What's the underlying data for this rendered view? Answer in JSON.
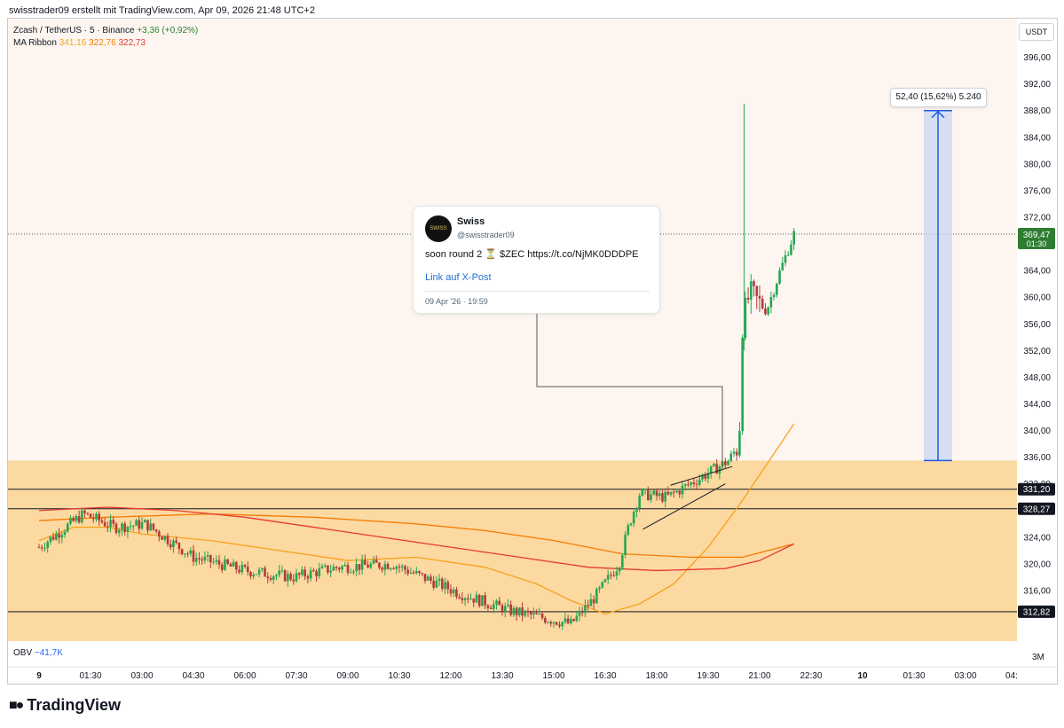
{
  "header": {
    "text": "swisstrader09 erstellt mit TradingView.com, Apr 09, 2026 21:48 UTC+2"
  },
  "legend": {
    "symbol": "Zcash / TetherUS · 5 · Binance",
    "change": "+3,36 (+0,92%)",
    "indicator_name": "MA Ribbon",
    "indicator_values": [
      "341,16",
      "322,76",
      "322,73"
    ],
    "obv_label": "OBV",
    "obv_value": "−41,7K"
  },
  "currency": "USDT",
  "tweet": {
    "name": "Swiss",
    "handle": "@swisstrader09",
    "text": "soon round 2 ⏳ $ZEC https://t.co/NjMK0DDDPE",
    "link": "Link auf X-Post",
    "date": "09 Apr '26 · 19:59",
    "avatar_text": "SWISS"
  },
  "measure_label": "52,40 (15,62%) 5.240",
  "obv_scale_label": "3M",
  "brand": "TradingView",
  "colors": {
    "zone": "#fbd9a1",
    "bg": "#fdf6f0",
    "up": "#26a653",
    "down": "#b33b3b",
    "ma_fast": "#f7a21b",
    "ma_mid": "#f57c00",
    "ma_slow": "#e53935",
    "measure": "#1e5ce6",
    "last_price_bg": "#2e7d32"
  },
  "chart_data": {
    "type": "candlestick",
    "symbol": "Zcash / TetherUS",
    "interval": "5",
    "exchange": "Binance",
    "ylim": [
      308,
      398
    ],
    "y_ticks": [
      "316,00",
      "320,00",
      "324,00",
      "328,00",
      "332,00",
      "336,00",
      "340,00",
      "344,00",
      "348,00",
      "352,00",
      "356,00",
      "360,00",
      "364,00",
      "368,00",
      "372,00",
      "376,00",
      "380,00",
      "384,00",
      "388,00",
      "392,00",
      "396,00"
    ],
    "x_ticks": [
      "9",
      "01:30",
      "03:00",
      "04:30",
      "06:00",
      "07:30",
      "09:00",
      "10:30",
      "12:00",
      "13:30",
      "15:00",
      "16:30",
      "18:00",
      "19:30",
      "21:00",
      "22:30",
      "10",
      "01:30",
      "03:00",
      "04:"
    ],
    "x_range_hours": [
      0,
      52.5
    ],
    "price_path_hours": [
      0,
      1.3,
      2.2,
      3.1,
      4.5,
      6.0,
      7.4,
      8.7,
      10.3,
      12.3,
      13.7,
      14.6,
      15.5,
      16.2,
      16.9,
      17.2,
      17.5,
      18.3,
      19.3,
      20.1,
      20.4,
      20.5,
      20.7,
      21.2,
      21.6,
      22.0
    ],
    "price_path_values": [
      322.5,
      327.5,
      325.5,
      326.0,
      321.0,
      319.0,
      318.0,
      319.5,
      320.0,
      315.5,
      313.0,
      312.0,
      311.0,
      315.0,
      320.0,
      326.0,
      330.5,
      330.0,
      333.0,
      335.5,
      338.0,
      356.0,
      360.5,
      358.0,
      364.0,
      369.5
    ],
    "spike_high": 389.0,
    "last_price": "369,47",
    "last_price_time": "01:30",
    "levels": [
      {
        "value": 331.2,
        "label": "331,20"
      },
      {
        "value": 328.27,
        "label": "328,27"
      },
      {
        "value": 312.82,
        "label": "312,82"
      }
    ],
    "zone": [
      309.5,
      335.5
    ],
    "ma_ribbon": [
      {
        "color": "#f7a21b",
        "hours": [
          0,
          1,
          2,
          3,
          5,
          7,
          9,
          11,
          13,
          14.5,
          15.5,
          16.5,
          17.5,
          18.5,
          19.5,
          20.5,
          22
        ],
        "values": [
          323.5,
          325.5,
          325.5,
          324.5,
          323.5,
          322.0,
          320.5,
          321.0,
          319.5,
          317.0,
          314.5,
          312.5,
          314.0,
          317.0,
          322.5,
          329.5,
          341.0
        ]
      },
      {
        "color": "#f57c00",
        "hours": [
          0,
          2,
          5,
          8,
          11,
          13,
          15,
          17,
          19,
          20.5,
          22
        ],
        "values": [
          326.5,
          327.0,
          327.5,
          327.0,
          326.0,
          325.0,
          323.5,
          321.5,
          321.0,
          321.0,
          323.0
        ]
      },
      {
        "color": "#e53935",
        "hours": [
          0,
          2,
          4,
          6,
          8,
          10,
          12,
          14,
          16,
          18,
          20,
          21,
          22
        ],
        "values": [
          328.0,
          328.5,
          328.0,
          327.0,
          325.5,
          324.0,
          322.5,
          321.0,
          319.5,
          319.0,
          319.3,
          320.5,
          323.0
        ]
      }
    ],
    "measure": {
      "from": 335.5,
      "to": 388.0,
      "change": "52,40",
      "percent": "15,62%",
      "ticks": "5.240"
    },
    "obv": {
      "label": "OBV",
      "value": "−41,7K",
      "scale": "3M"
    }
  }
}
